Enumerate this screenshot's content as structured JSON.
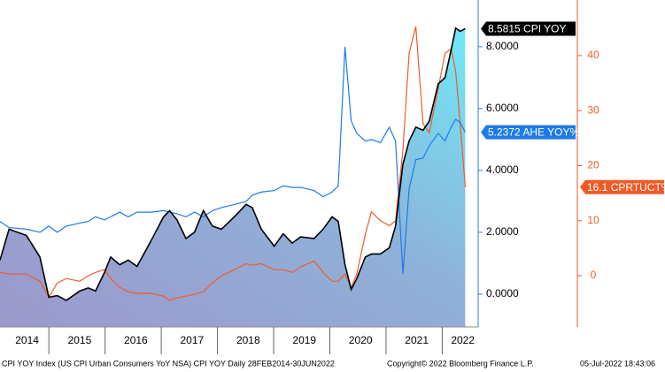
{
  "chart_data": {
    "type": "line",
    "x": [
      2014.13,
      2014.29,
      2014.6,
      2014.84,
      2015.0,
      2015.15,
      2015.31,
      2015.55,
      2015.7,
      2015.83,
      2015.99,
      2016.1,
      2016.26,
      2016.41,
      2016.57,
      2016.81,
      2017.04,
      2017.15,
      2017.28,
      2017.44,
      2017.59,
      2017.75,
      2017.91,
      2018.07,
      2018.3,
      2018.51,
      2018.62,
      2018.78,
      2019.01,
      2019.17,
      2019.33,
      2019.48,
      2019.72,
      2019.88,
      2020.04,
      2020.15,
      2020.27,
      2020.38,
      2020.48,
      2020.63,
      2020.74,
      2020.9,
      2021.06,
      2021.17,
      2021.3,
      2021.41,
      2021.53,
      2021.66,
      2021.77,
      2021.93,
      2022.05,
      2022.16,
      2022.24,
      2022.32,
      2022.41
    ],
    "xlim": [
      2014.13,
      2022.64
    ],
    "xticks": [
      2014,
      2015,
      2016,
      2017,
      2018,
      2019,
      2020,
      2021,
      2022
    ],
    "ylim": [
      -1.06,
      9.51
    ],
    "yticks": [
      {
        "value": 0,
        "label": "0.0000"
      },
      {
        "value": 2,
        "label": "2.0000"
      },
      {
        "value": 4,
        "label": "4.0000"
      },
      {
        "value": 6,
        "label": "6.0000"
      },
      {
        "value": 8,
        "label": "8.0000"
      }
    ],
    "y2lim": [
      -9.3,
      50.1
    ],
    "y2ticks": [
      0,
      10,
      20,
      30,
      40
    ],
    "series": [
      {
        "name": "CPI YOY",
        "color": "#000000",
        "area": true,
        "values": [
          1.1,
          2.1,
          1.9,
          1.2,
          -0.1,
          -0.05,
          -0.2,
          0.1,
          0.2,
          0.1,
          0.7,
          1.2,
          0.95,
          1.1,
          0.9,
          1.7,
          2.5,
          2.7,
          2.4,
          1.8,
          2.0,
          2.7,
          2.2,
          2.1,
          2.5,
          2.9,
          2.8,
          2.1,
          1.55,
          1.95,
          1.65,
          1.85,
          1.8,
          2.1,
          2.5,
          2.35,
          0.95,
          0.15,
          0.5,
          1.2,
          1.3,
          1.3,
          1.5,
          2.2,
          4.2,
          4.95,
          5.4,
          5.3,
          5.6,
          6.8,
          7.0,
          7.9,
          8.6,
          8.5,
          8.5815
        ]
      },
      {
        "name": "AHE YOY%",
        "color": "#1e7be6",
        "values": [
          2.35,
          2.15,
          2.1,
          2.0,
          2.2,
          2.0,
          2.2,
          2.3,
          2.35,
          2.5,
          2.4,
          2.5,
          2.65,
          2.5,
          2.65,
          2.65,
          2.7,
          2.65,
          2.6,
          2.5,
          2.65,
          2.5,
          2.7,
          2.8,
          2.9,
          3.0,
          3.2,
          3.3,
          3.35,
          3.5,
          3.45,
          3.45,
          3.35,
          3.15,
          3.3,
          3.5,
          8.0,
          5.6,
          5.2,
          4.95,
          5.0,
          4.9,
          5.4,
          4.95,
          0.65,
          3.4,
          4.35,
          4.4,
          4.8,
          5.2,
          4.95,
          5.4,
          5.65,
          5.55,
          5.2372
        ]
      },
      {
        "name": "CPRTUCT%",
        "color": "#f05a28",
        "axis": "y2",
        "values": [
          0.6,
          0.3,
          0.3,
          -1.0,
          -3.9,
          -1.3,
          -0.5,
          -1.0,
          0,
          0.6,
          1.1,
          -0.5,
          -2.1,
          -2.9,
          -3.2,
          -3.2,
          -3.7,
          -4.5,
          -4.0,
          -3.7,
          -3.4,
          -2.9,
          -1.3,
          0,
          1.1,
          2.2,
          1.9,
          2.2,
          1.1,
          1.1,
          0.6,
          1.6,
          2.7,
          0.6,
          -1.0,
          -1.0,
          0.3,
          -2.1,
          0.3,
          7.5,
          11.6,
          10.0,
          9.1,
          10.0,
          22.8,
          40.4,
          45.3,
          27.6,
          26.0,
          34.0,
          40.4,
          41.2,
          37.2,
          27.6,
          16.1
        ]
      }
    ],
    "footer": {
      "source": "CPI YOY Index (US CPI Urban Consumers YoY NSA) CPI YOY  Daily 28FEB2014-30JUN2022",
      "copyright": "Copyright© 2022 Bloomberg Finance L.P.",
      "timestamp": "05-Jul-2022 18:43:06"
    }
  }
}
